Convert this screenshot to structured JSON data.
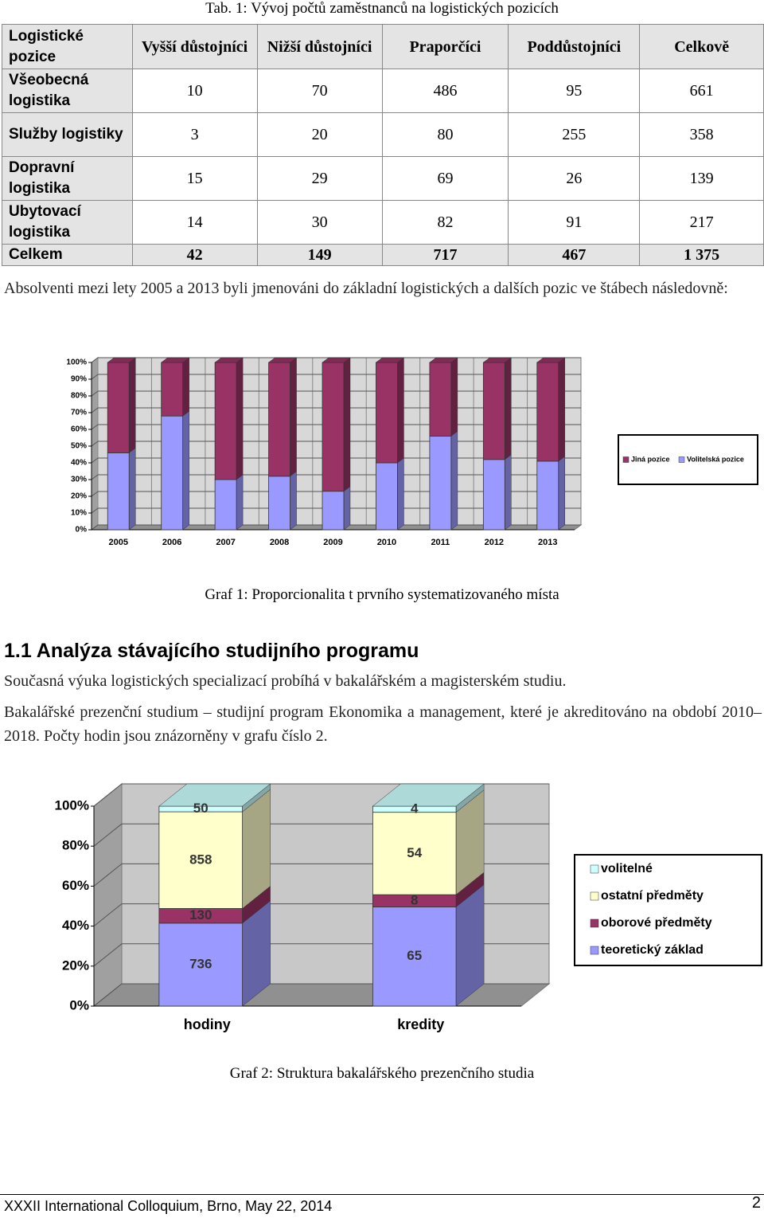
{
  "table": {
    "caption": "Tab. 1: Vývoj počtů zaměstnanců na logistických pozicích",
    "header": [
      "Logistické pozice",
      "Vyšší důstojníci",
      "Nižší důstojníci",
      "Praporčíci",
      "Poddůstojníci",
      "Celkově"
    ],
    "rows": [
      [
        "Všeobecná logistika",
        10,
        70,
        486,
        95,
        661
      ],
      [
        "Služby logistiky",
        3,
        20,
        80,
        255,
        358
      ],
      [
        "Dopravní logistika",
        15,
        29,
        69,
        26,
        139
      ],
      [
        "Ubytovací logistika",
        14,
        30,
        82,
        91,
        217
      ]
    ],
    "total": [
      "Celkem",
      42,
      149,
      717,
      467,
      "1 375"
    ]
  },
  "paragraphs": [
    "Absolventi mezi lety 2005 a 2013 byli jmenováni do základní logistických a dalších pozic ve štábech následovně:",
    "Současná výuka logistických specializací probíhá v bakalářském a magisterském studiu.",
    "Bakalářské prezenční studium – studijní program Ekonomika a management, které je akreditováno na období 2010–2018. Počty hodin jsou znázorněny v grafu číslo 2."
  ],
  "section_heading": "1.1 Analýza stávajícího studijního programu",
  "chart_data": [
    {
      "type": "bar",
      "stacking": "stacked",
      "caption": "Graf 1: Proporcionalita t prvního systematizovaného místa",
      "categories": [
        "2005",
        "2006",
        "2007",
        "2008",
        "2009",
        "2010",
        "2011",
        "2012",
        "2013"
      ],
      "series": [
        {
          "name": "Volitelská pozice",
          "color": "#9999ff",
          "values": [
            46,
            68,
            30,
            32,
            23,
            40,
            56,
            42,
            41
          ]
        },
        {
          "name": "Jiná pozice",
          "color": "#993366",
          "values": [
            54,
            32,
            70,
            68,
            77,
            60,
            44,
            58,
            59
          ]
        }
      ],
      "ylim": [
        0,
        100
      ],
      "yticks": [
        {
          "value": 0,
          "label": "0%"
        },
        {
          "value": 10,
          "label": "10%"
        },
        {
          "value": 20,
          "label": "20%"
        },
        {
          "value": 30,
          "label": "30%"
        },
        {
          "value": 40,
          "label": "40%"
        },
        {
          "value": 50,
          "label": "50%"
        },
        {
          "value": 60,
          "label": "60%"
        },
        {
          "value": 70,
          "label": "70%"
        },
        {
          "value": 80,
          "label": "80%"
        },
        {
          "value": 90,
          "label": "90%"
        },
        {
          "value": 100,
          "label": "100%"
        }
      ],
      "grid": true,
      "legend": "right"
    },
    {
      "type": "bar",
      "stacking": "percent",
      "caption": "Graf 2: Struktura bakalářského prezenčního studia",
      "categories": [
        "hodiny",
        "kredity"
      ],
      "series": [
        {
          "name": "teoretický základ",
          "color": "#9999ff",
          "values": [
            736,
            65
          ]
        },
        {
          "name": "oborové předměty",
          "color": "#993366",
          "values": [
            130,
            8
          ]
        },
        {
          "name": "ostatní předměty",
          "color": "#ffffcc",
          "values": [
            858,
            54
          ]
        },
        {
          "name": "volitelné",
          "color": "#ccffff",
          "values": [
            50,
            4
          ]
        }
      ],
      "ylim": [
        0,
        100
      ],
      "yticks": [
        {
          "value": 0,
          "label": "0%"
        },
        {
          "value": 20,
          "label": "20%"
        },
        {
          "value": 40,
          "label": "40%"
        },
        {
          "value": 60,
          "label": "60%"
        },
        {
          "value": 80,
          "label": "80%"
        },
        {
          "value": 100,
          "label": "100%"
        }
      ],
      "grid": true,
      "legend": "right",
      "data_labels": true
    }
  ],
  "footer": {
    "text": "XXXII International Colloquium, Brno, May 22, 2014",
    "page": 2
  }
}
